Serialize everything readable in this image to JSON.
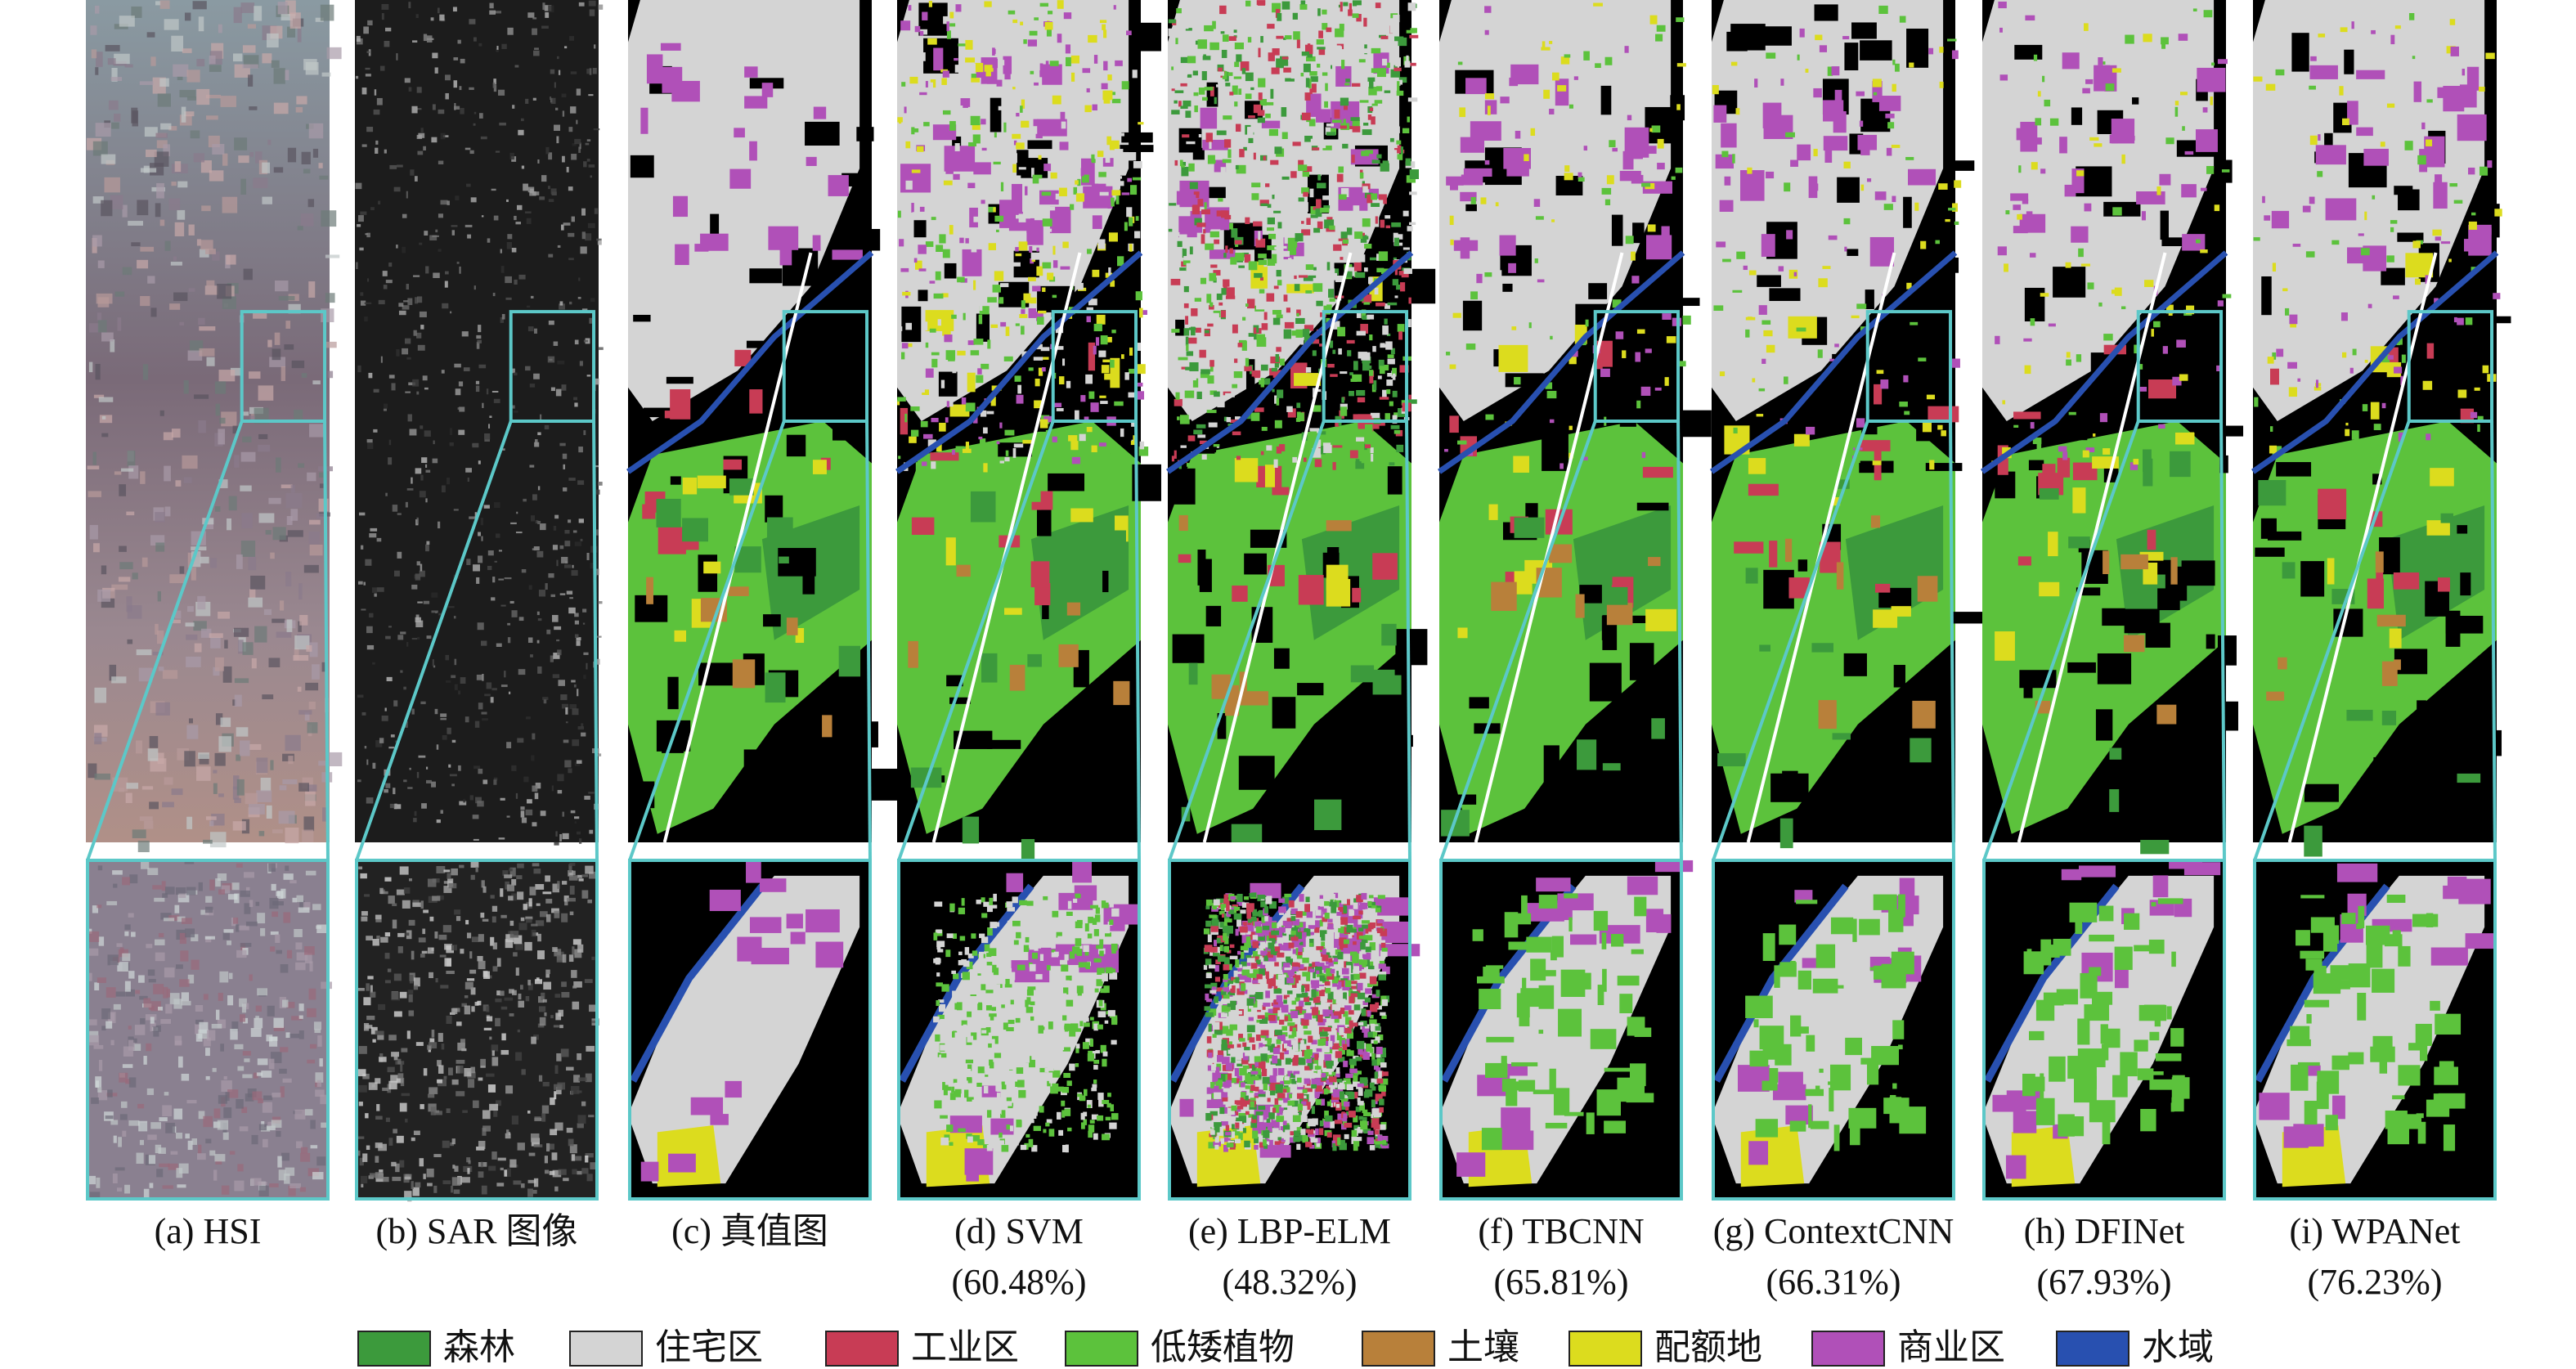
{
  "panels": [
    {
      "label": "(a) HSI"
    },
    {
      "label": "(b) SAR 图像"
    },
    {
      "label": "(c) 真值图"
    },
    {
      "label": "(d) SVM",
      "accuracy": "(60.48%)"
    },
    {
      "label": "(e) LBP-ELM",
      "accuracy": "(48.32%)"
    },
    {
      "label": "(f) TBCNN",
      "accuracy": "(65.81%)"
    },
    {
      "label": "(g) ContextCNN",
      "accuracy": "(66.31%)"
    },
    {
      "label": "(h) DFINet",
      "accuracy": "(67.93%)"
    },
    {
      "label": "(i) WPANet",
      "accuracy": "(76.23%)"
    }
  ],
  "legend": [
    {
      "name": "森林",
      "color": "#3c9a3c"
    },
    {
      "name": "住宅区",
      "color": "#d4d4d4"
    },
    {
      "name": "工业区",
      "color": "#c83c55"
    },
    {
      "name": "低矮植物",
      "color": "#5cc23c"
    },
    {
      "name": "土壤",
      "color": "#b8803a"
    },
    {
      "name": "配额地",
      "color": "#dcdc1e"
    },
    {
      "name": "商业区",
      "color": "#b050b8"
    },
    {
      "name": "水域",
      "color": "#2850b0"
    }
  ]
}
